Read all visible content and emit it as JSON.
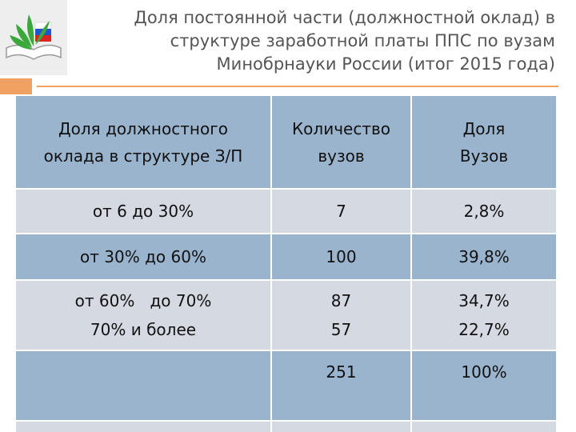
{
  "slide": {
    "title_lines": [
      "Доля постоянной части (должностной оклад) в",
      "структуре заработной платы ППС по вузам",
      "Минобрнауки России (итог 2015 года)"
    ]
  },
  "table": {
    "headers": {
      "col1_line1": "Доля должностного",
      "col1_line2": "оклада в структуре З/П",
      "col2_line1": "Количество",
      "col2_line2": "вузов",
      "col3_line1": "Доля",
      "col3_line2": "Вузов"
    },
    "rows": [
      {
        "range": "от 6 до 30%",
        "count": "7",
        "share": "2,8%"
      },
      {
        "range": "от 30% до 60%",
        "count": "100",
        "share": "39,8%"
      },
      {
        "range_line1": "от 60%   до 70%",
        "range_line2": "70% и более",
        "count_line1": "87",
        "count_line2": "57",
        "share_line1": "34,7%",
        "share_line2": "22,7%"
      },
      {
        "range": "",
        "count": "251",
        "share": "100%"
      }
    ]
  }
}
